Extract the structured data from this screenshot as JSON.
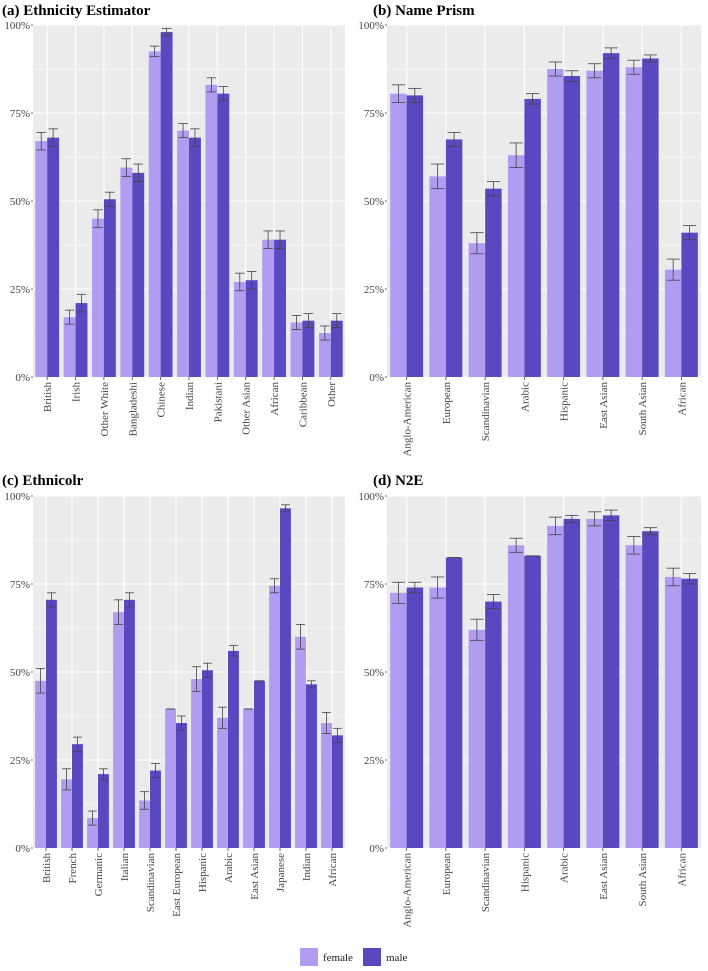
{
  "legend": {
    "items": [
      {
        "label": "female",
        "color": "#b19cf2"
      },
      {
        "label": "male",
        "color": "#5a48c0"
      }
    ]
  },
  "colors": {
    "panel_bg": "#ebebeb",
    "grid": "#ffffff",
    "error_bar": "#444444"
  },
  "chart_data": [
    {
      "type": "bar",
      "title": "(a) Ethnicity Estimator",
      "categories": [
        "British",
        "Irish",
        "Other White",
        "Bangladeshi",
        "Chinese",
        "Indian",
        "Pakistani",
        "Other Asian",
        "African",
        "Caribbean",
        "Other"
      ],
      "series": [
        {
          "name": "female",
          "values": [
            67,
            17,
            45,
            59.5,
            92.5,
            70,
            83,
            27,
            39,
            15.5,
            12.5
          ],
          "errors": [
            2.5,
            2,
            2.5,
            2.5,
            1.5,
            2,
            2,
            2.5,
            2.5,
            2,
            2
          ]
        },
        {
          "name": "male",
          "values": [
            68,
            21,
            50.5,
            58,
            98,
            68,
            80.5,
            27.5,
            39,
            16,
            16
          ],
          "errors": [
            2.5,
            2.5,
            2,
            2.5,
            1,
            2.5,
            2,
            2.5,
            2.5,
            2,
            2
          ]
        }
      ],
      "ylim": [
        0,
        100
      ],
      "yticks": [
        "0%",
        "25%",
        "50%",
        "75%",
        "100%"
      ],
      "xlabel": "",
      "ylabel": "",
      "grid": true,
      "legend": "bottom"
    },
    {
      "type": "bar",
      "title": "(b) Name Prism",
      "categories": [
        "Anglo-American",
        "European",
        "Scandinavian",
        "Arabic",
        "Hispanic",
        "East Asian",
        "South Asian",
        "African"
      ],
      "series": [
        {
          "name": "female",
          "values": [
            80.5,
            57,
            38,
            63,
            87.5,
            87,
            88,
            30.5
          ],
          "errors": [
            2.5,
            3.5,
            3,
            3.5,
            2,
            2,
            2,
            3
          ]
        },
        {
          "name": "male",
          "values": [
            80,
            67.5,
            53.5,
            79,
            85.5,
            92,
            90.5,
            41
          ],
          "errors": [
            2,
            2,
            2,
            1.5,
            1.5,
            1.5,
            1,
            2
          ]
        }
      ],
      "ylim": [
        0,
        100
      ],
      "yticks": [
        "0%",
        "25%",
        "50%",
        "75%",
        "100%"
      ],
      "xlabel": "",
      "ylabel": "",
      "grid": true,
      "legend": "bottom"
    },
    {
      "type": "bar",
      "title": "(c) Ethnicolr",
      "categories": [
        "British",
        "French",
        "Germanic",
        "Italian",
        "Scandinavian",
        "East European",
        "Hispanic",
        "Arabic",
        "East Asian",
        "Japanese",
        "Indian",
        "African"
      ],
      "series": [
        {
          "name": "female",
          "values": [
            47.5,
            19.5,
            8.5,
            67,
            13.5,
            39.5,
            48,
            37,
            39.5,
            74.5,
            60,
            35.5
          ],
          "errors": [
            3.5,
            3,
            2,
            3.5,
            2.5,
            0,
            3.5,
            3,
            0,
            2,
            3.5,
            3
          ]
        },
        {
          "name": "male",
          "values": [
            70.5,
            29.5,
            21,
            70.5,
            22,
            35.5,
            50.5,
            56,
            47.5,
            96.5,
            46.5,
            32
          ],
          "errors": [
            2,
            2,
            1.5,
            2,
            2,
            2,
            2,
            1.5,
            0,
            1,
            1,
            2
          ]
        }
      ],
      "ylim": [
        0,
        100
      ],
      "yticks": [
        "0%",
        "25%",
        "50%",
        "75%",
        "100%"
      ],
      "xlabel": "",
      "ylabel": "",
      "grid": true,
      "legend": "bottom"
    },
    {
      "type": "bar",
      "title": "(d) N2E",
      "categories": [
        "Anglo-American",
        "European",
        "Scandinavian",
        "Hispanic",
        "Arabic",
        "East Asian",
        "South Asian",
        "African"
      ],
      "series": [
        {
          "name": "female",
          "values": [
            72.5,
            74,
            62,
            86,
            91.5,
            93.5,
            86,
            77
          ],
          "errors": [
            3,
            3,
            3,
            2,
            2.5,
            2,
            2.5,
            2.5
          ]
        },
        {
          "name": "male",
          "values": [
            74,
            82.5,
            70,
            83,
            93.5,
            94.5,
            90,
            76.5
          ],
          "errors": [
            1.5,
            0,
            2,
            0,
            1,
            1.5,
            1,
            1.5
          ]
        }
      ],
      "ylim": [
        0,
        100
      ],
      "yticks": [
        "0%",
        "25%",
        "50%",
        "75%",
        "100%"
      ],
      "xlabel": "",
      "ylabel": "",
      "grid": true,
      "legend": "bottom"
    }
  ]
}
